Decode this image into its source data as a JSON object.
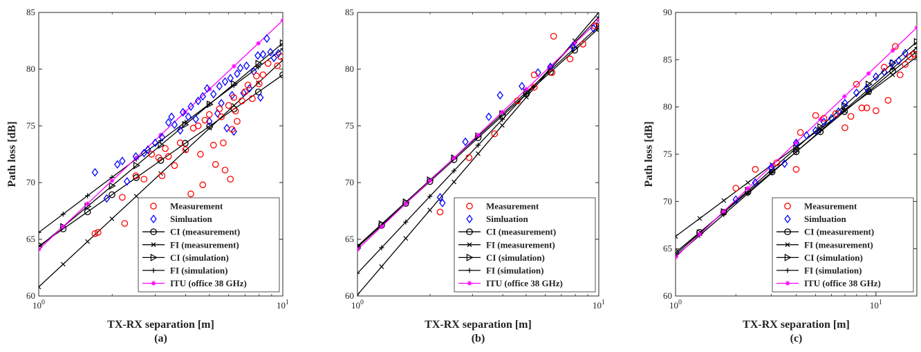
{
  "figure": {
    "legend_labels": {
      "meas": "Measurement",
      "sim": "Simluation",
      "ci_meas": "CI (measurement)",
      "fi_meas": "FI (measurement)",
      "ci_sim": "CI (simulation)",
      "fi_sim": "FI (simulation)",
      "itu": "ITU (office 38 GHz)"
    },
    "colors": {
      "measurement": "#ff0000",
      "simulation": "#0000ff",
      "model_lines": "#000000",
      "itu": "#ff00ff"
    }
  },
  "chart_data": [
    {
      "type": "scatter",
      "panel_label": "(a)",
      "xlabel": "TX-RX separation [m]",
      "ylabel": "Path loss [dB]",
      "x_scale": "log",
      "xlim": [
        1,
        10
      ],
      "ylim": [
        60,
        85
      ],
      "x_ticks": [
        1,
        10
      ],
      "x_tick_labels": [
        "10^0",
        "10^1"
      ],
      "y_ticks": [
        60,
        65,
        70,
        75,
        80,
        85
      ],
      "y_tick_labels": [
        "60",
        "65",
        "70",
        "75",
        "80",
        "85"
      ],
      "legend_position": "bottom-right",
      "grid": false,
      "measurement": [
        [
          1.7,
          65.5
        ],
        [
          1.75,
          65.6
        ],
        [
          2.2,
          68.7
        ],
        [
          2.25,
          66.4
        ],
        [
          2.5,
          70.6
        ],
        [
          2.7,
          70.3
        ],
        [
          2.9,
          72.5
        ],
        [
          3.1,
          72.2
        ],
        [
          3.2,
          70.6
        ],
        [
          3.3,
          73.0
        ],
        [
          3.4,
          72.3
        ],
        [
          3.6,
          71.5
        ],
        [
          3.8,
          73.5
        ],
        [
          4.0,
          72.9
        ],
        [
          4.2,
          69.0
        ],
        [
          4.3,
          74.8
        ],
        [
          4.5,
          75.0
        ],
        [
          4.6,
          72.5
        ],
        [
          4.7,
          69.8
        ],
        [
          4.8,
          75.5
        ],
        [
          5.0,
          76.0
        ],
        [
          5.2,
          73.3
        ],
        [
          5.3,
          71.6
        ],
        [
          5.5,
          76.5
        ],
        [
          5.6,
          75.8
        ],
        [
          5.7,
          73.5
        ],
        [
          5.8,
          71.1
        ],
        [
          6.0,
          76.8
        ],
        [
          6.1,
          70.3
        ],
        [
          6.2,
          74.7
        ],
        [
          6.3,
          77.5
        ],
        [
          6.4,
          76.3
        ],
        [
          6.5,
          75.4
        ],
        [
          6.8,
          77.2
        ],
        [
          7.0,
          78.0
        ],
        [
          7.2,
          78.6
        ],
        [
          7.5,
          77.4
        ],
        [
          7.8,
          79.4
        ],
        [
          8.0,
          78.7
        ],
        [
          8.3,
          79.5
        ],
        [
          8.7,
          80.5
        ],
        [
          9.5,
          80.3
        ],
        [
          9.8,
          81.1
        ]
      ],
      "simulation": [
        [
          1.7,
          70.9
        ],
        [
          1.9,
          68.6
        ],
        [
          2.1,
          71.6
        ],
        [
          2.2,
          71.9
        ],
        [
          2.3,
          70.1
        ],
        [
          2.5,
          72.3
        ],
        [
          2.7,
          72.6
        ],
        [
          2.8,
          72.9
        ],
        [
          3.0,
          73.5
        ],
        [
          3.2,
          74.0
        ],
        [
          3.4,
          75.3
        ],
        [
          3.5,
          75.8
        ],
        [
          3.6,
          75.1
        ],
        [
          3.8,
          74.6
        ],
        [
          3.9,
          76.2
        ],
        [
          4.1,
          75.8
        ],
        [
          4.2,
          76.7
        ],
        [
          4.4,
          75.6
        ],
        [
          4.5,
          77.2
        ],
        [
          4.7,
          77.6
        ],
        [
          4.9,
          78.3
        ],
        [
          5.0,
          75.4
        ],
        [
          5.2,
          77.8
        ],
        [
          5.4,
          76.1
        ],
        [
          5.5,
          78.5
        ],
        [
          5.6,
          77.0
        ],
        [
          5.8,
          78.9
        ],
        [
          5.9,
          74.8
        ],
        [
          6.1,
          79.2
        ],
        [
          6.2,
          77.7
        ],
        [
          6.3,
          74.5
        ],
        [
          6.5,
          79.6
        ],
        [
          6.7,
          80.1
        ],
        [
          6.9,
          77.9
        ],
        [
          7.1,
          80.3
        ],
        [
          7.3,
          78.3
        ],
        [
          7.6,
          79.8
        ],
        [
          7.9,
          81.2
        ],
        [
          8.1,
          77.5
        ],
        [
          8.3,
          81.3
        ],
        [
          8.6,
          82.7
        ],
        [
          8.9,
          81.5
        ],
        [
          9.2,
          81.0
        ],
        [
          9.6,
          81.4
        ]
      ],
      "ci_meas": [
        [
          1,
          64.4
        ],
        [
          10,
          79.5
        ]
      ],
      "fi_meas": [
        [
          1,
          60.8
        ],
        [
          10,
          80.8
        ]
      ],
      "ci_sim": [
        [
          1,
          64.3
        ],
        [
          10,
          82.3
        ]
      ],
      "fi_sim": [
        [
          1,
          65.6
        ],
        [
          10,
          81.8
        ]
      ],
      "itu": [
        [
          1,
          64.1
        ],
        [
          10,
          84.3
        ]
      ]
    },
    {
      "type": "scatter",
      "panel_label": "(b)",
      "xlabel": "TX-RX separation [m]",
      "ylabel": "",
      "x_scale": "log",
      "xlim": [
        1,
        10
      ],
      "ylim": [
        60,
        85
      ],
      "x_ticks": [
        1,
        10
      ],
      "x_tick_labels": [
        "10^0",
        "10^1"
      ],
      "y_ticks": [
        60,
        65,
        70,
        75,
        80,
        85
      ],
      "y_tick_labels": [
        "60",
        "65",
        "70",
        "75",
        "80",
        "85"
      ],
      "legend_position": "bottom-right",
      "grid": false,
      "measurement": [
        [
          2.2,
          67.4
        ],
        [
          2.9,
          72.2
        ],
        [
          3.7,
          74.3
        ],
        [
          4.6,
          77.2
        ],
        [
          5.4,
          78.4
        ],
        [
          5.4,
          79.5
        ],
        [
          6.4,
          79.7
        ],
        [
          6.5,
          82.9
        ],
        [
          7.6,
          80.9
        ],
        [
          8.6,
          82.2
        ],
        [
          9.6,
          83.8
        ]
      ],
      "simulation": [
        [
          2.2,
          68.7
        ],
        [
          2.25,
          68.2
        ],
        [
          2.8,
          73.6
        ],
        [
          3.5,
          75.8
        ],
        [
          3.9,
          77.7
        ],
        [
          4.8,
          78.5
        ],
        [
          5.6,
          79.7
        ],
        [
          6.3,
          80.2
        ],
        [
          7.8,
          82.0
        ],
        [
          9.5,
          83.6
        ]
      ],
      "ci_meas": [
        [
          1,
          64.3
        ],
        [
          10,
          83.6
        ]
      ],
      "fi_meas": [
        [
          1,
          60.1
        ],
        [
          10,
          85.0
        ]
      ],
      "ci_sim": [
        [
          1,
          64.4
        ],
        [
          10,
          83.8
        ]
      ],
      "fi_sim": [
        [
          1,
          62.0
        ],
        [
          10,
          84.6
        ]
      ],
      "itu": [
        [
          1,
          64.1
        ],
        [
          10,
          84.3
        ]
      ]
    },
    {
      "type": "scatter",
      "panel_label": "(c)",
      "xlabel": "TX-RX separation [m]",
      "ylabel": "Path loss [dB]",
      "x_scale": "log",
      "xlim": [
        1,
        16
      ],
      "ylim": [
        60,
        90
      ],
      "x_ticks": [
        1,
        10
      ],
      "x_tick_labels": [
        "10^0",
        "10^1"
      ],
      "y_ticks": [
        60,
        65,
        70,
        75,
        80,
        85,
        90
      ],
      "y_tick_labels": [
        "60",
        "65",
        "70",
        "75",
        "80",
        "85",
        "90"
      ],
      "legend_position": "bottom-right",
      "grid": false,
      "measurement": [
        [
          2.0,
          71.4
        ],
        [
          2.5,
          73.4
        ],
        [
          3.2,
          74.1
        ],
        [
          4.0,
          73.4
        ],
        [
          4.2,
          77.3
        ],
        [
          5.0,
          79.1
        ],
        [
          5.5,
          78.8
        ],
        [
          6.3,
          79.3
        ],
        [
          7.0,
          77.8
        ],
        [
          7.5,
          79.0
        ],
        [
          8.0,
          82.4
        ],
        [
          8.5,
          79.9
        ],
        [
          9.0,
          79.9
        ],
        [
          10.0,
          79.6
        ],
        [
          11.0,
          84.2
        ],
        [
          11.5,
          80.7
        ],
        [
          12.5,
          86.4
        ],
        [
          13.2,
          83.4
        ],
        [
          14.0,
          84.5
        ],
        [
          14.8,
          85.3
        ],
        [
          15.5,
          85.6
        ]
      ],
      "simulation": [
        [
          2.0,
          70.2
        ],
        [
          2.5,
          72.0
        ],
        [
          3.0,
          73.6
        ],
        [
          3.5,
          74.0
        ],
        [
          4.0,
          76.2
        ],
        [
          4.5,
          77.0
        ],
        [
          5.0,
          77.5
        ],
        [
          5.5,
          78.4
        ],
        [
          6.0,
          78.8
        ],
        [
          6.5,
          79.5
        ],
        [
          7.0,
          80.4
        ],
        [
          8.0,
          81.5
        ],
        [
          9.0,
          82.0
        ],
        [
          10.0,
          83.2
        ],
        [
          11.0,
          83.7
        ],
        [
          12.0,
          84.6
        ],
        [
          13.0,
          84.9
        ],
        [
          14.0,
          85.7
        ]
      ],
      "ci_meas": [
        [
          1,
          64.6
        ],
        [
          16,
          85.9
        ]
      ],
      "fi_meas": [
        [
          1,
          66.3
        ],
        [
          16,
          85.3
        ]
      ],
      "ci_sim": [
        [
          1,
          64.4
        ],
        [
          16,
          86.9
        ]
      ],
      "fi_sim": [
        [
          1,
          64.2
        ],
        [
          16,
          86.3
        ]
      ],
      "itu": [
        [
          1,
          64.1
        ],
        [
          16,
          88.4
        ]
      ]
    }
  ]
}
